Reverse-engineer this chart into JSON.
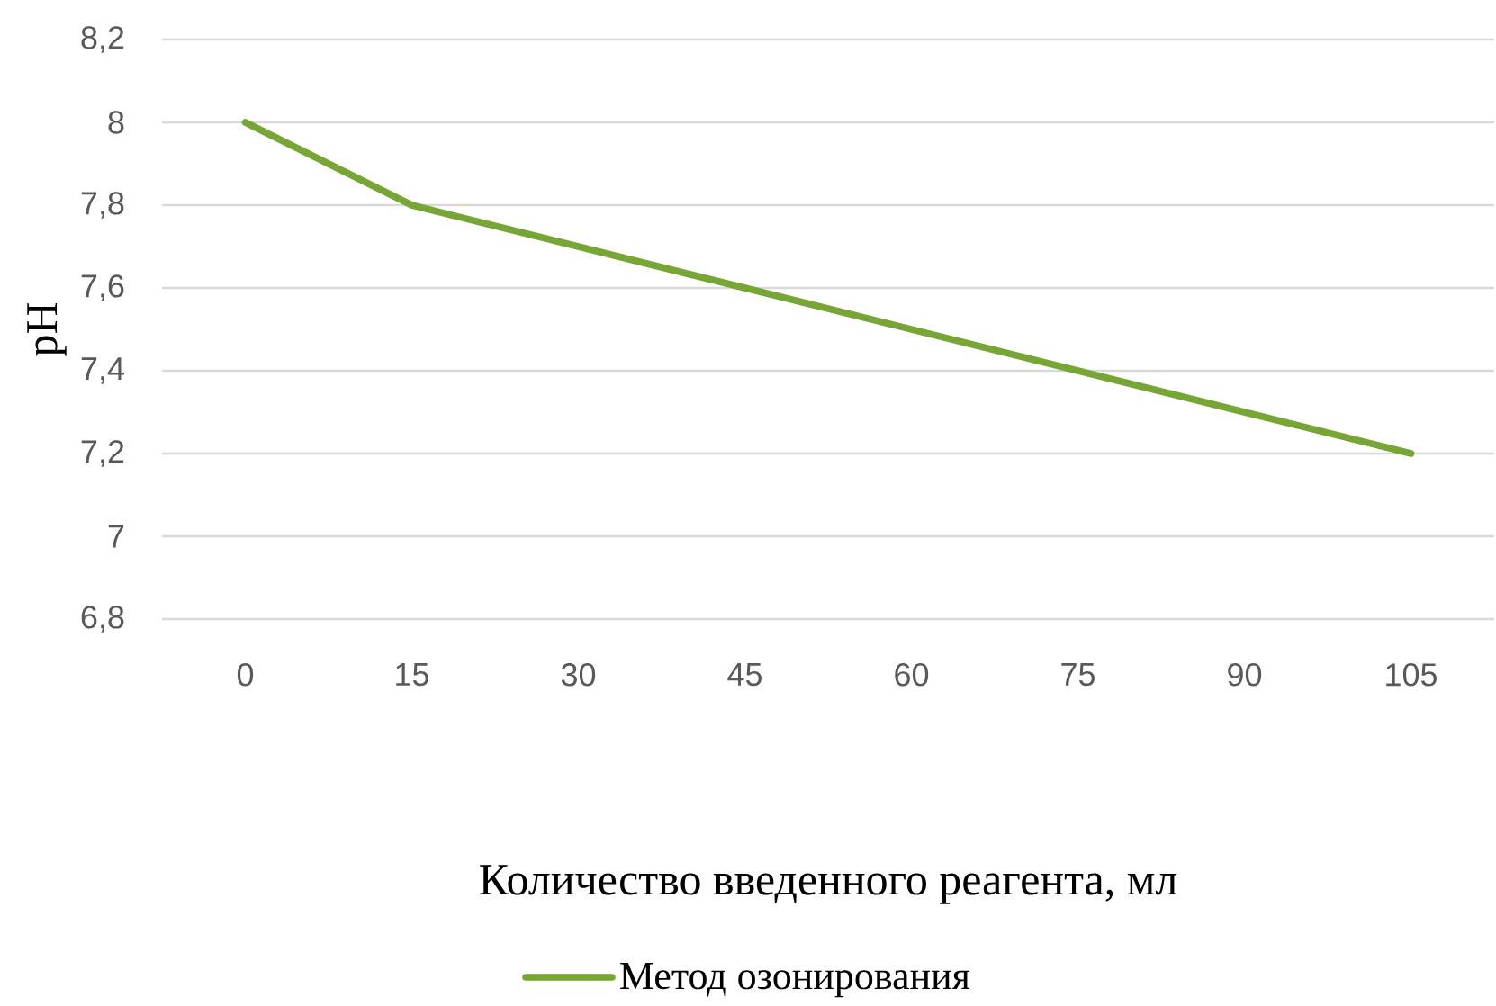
{
  "chart_data": {
    "type": "line",
    "xlabel": "Количество введенного реагента, мл",
    "ylabel": "pH",
    "categories": [
      "0",
      "15",
      "30",
      "45",
      "60",
      "75",
      "90",
      "105"
    ],
    "series": [
      {
        "name": "Метод озонирования",
        "color": "#77a536",
        "values": [
          8,
          7.8,
          7.7,
          7.6,
          7.5,
          7.4,
          7.3,
          7.2
        ]
      }
    ],
    "ylim": [
      6.8,
      8.2
    ],
    "yticks": [
      {
        "value": 6.8,
        "label": "6,8"
      },
      7,
      {
        "value": 7.2,
        "label": "7,2"
      },
      {
        "value": 7.4,
        "label": "7,4"
      },
      {
        "value": 7.6,
        "label": "7,6"
      },
      {
        "value": 7.8,
        "label": "7,8"
      },
      8,
      {
        "value": 8.2,
        "label": "8,2"
      }
    ],
    "grid": "y",
    "legend": "bottom",
    "marker": "none",
    "line_style": "solid"
  }
}
